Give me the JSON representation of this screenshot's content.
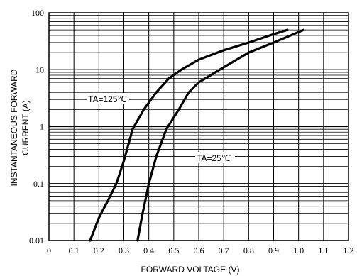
{
  "chart_data": {
    "type": "line",
    "title": "",
    "xlabel": "FORWARD VOLTAGE (V)",
    "ylabel_lines": [
      "INSTANTANEOUS FORWARD",
      "CURRENT (A)"
    ],
    "xlim": [
      0,
      1.2
    ],
    "ylim": [
      0.01,
      100
    ],
    "y_scale": "log",
    "grid": true,
    "legend": "none",
    "x_ticks": [
      "0",
      "0.1",
      "0.2",
      "0.3",
      "0.4",
      "0.5",
      "0.6",
      "0.7",
      "0.8",
      "0.9",
      "1.0",
      "1.1",
      "1.2"
    ],
    "y_ticks": [
      {
        "value": 0.01,
        "label": "0.01"
      },
      {
        "value": 0.1,
        "label": "0.1"
      },
      {
        "value": 1,
        "label": "1"
      },
      {
        "value": 10,
        "label": "10"
      },
      {
        "value": 100,
        "label": "100"
      }
    ],
    "series": [
      {
        "name": "TA=125℃",
        "x": [
          0.165,
          0.2,
          0.245,
          0.27,
          0.3,
          0.335,
          0.38,
          0.43,
          0.48,
          0.53,
          0.6,
          0.7,
          0.8,
          0.9,
          0.955
        ],
        "y": [
          0.01,
          0.025,
          0.06,
          0.1,
          0.25,
          0.9,
          2.0,
          4.0,
          7.0,
          10.0,
          15.0,
          22.0,
          30.0,
          42.0,
          50.0
        ]
      },
      {
        "name": "TA=25℃",
        "x": [
          0.355,
          0.375,
          0.4,
          0.43,
          0.47,
          0.52,
          0.56,
          0.6,
          0.7,
          0.8,
          0.9,
          1.02
        ],
        "y": [
          0.01,
          0.03,
          0.1,
          0.3,
          0.9,
          2.0,
          4.0,
          6.0,
          11.0,
          20.0,
          30.0,
          50.0
        ]
      }
    ],
    "annotations": [
      {
        "text": "TA=125℃",
        "series": 0
      },
      {
        "text": "TA=25℃",
        "series": 1
      }
    ]
  }
}
